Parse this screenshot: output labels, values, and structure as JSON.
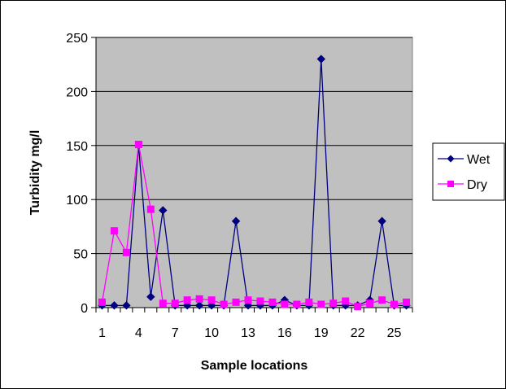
{
  "chart_data": {
    "type": "line",
    "xlabel": "Sample locations",
    "ylabel": "Turbidity mg/l",
    "ylim": [
      0,
      250
    ],
    "yticks": [
      0,
      50,
      100,
      150,
      200,
      250
    ],
    "x": [
      1,
      2,
      3,
      4,
      5,
      6,
      7,
      8,
      9,
      10,
      11,
      12,
      13,
      14,
      15,
      16,
      17,
      18,
      19,
      20,
      21,
      22,
      23,
      24,
      25,
      26
    ],
    "xtick_labels": [
      "1",
      "4",
      "7",
      "10",
      "13",
      "16",
      "19",
      "22",
      "25"
    ],
    "grid": "horizontal",
    "plot_background": "#c0c0c0",
    "legend_position": "right",
    "series": [
      {
        "name": "Wet",
        "color": "#000080",
        "marker": "diamond",
        "values": [
          2,
          2,
          2,
          150,
          10,
          90,
          2,
          2,
          2,
          2,
          2,
          80,
          2,
          2,
          2,
          7,
          2,
          2,
          230,
          2,
          2,
          2,
          7,
          80,
          2,
          2
        ]
      },
      {
        "name": "Dry",
        "color": "#ff00ff",
        "marker": "square",
        "values": [
          5,
          71,
          51,
          151,
          91,
          4,
          4,
          7,
          8,
          7,
          3,
          5,
          7,
          6,
          5,
          3,
          3,
          5,
          3,
          4,
          6,
          1,
          4,
          7,
          3,
          5
        ]
      }
    ]
  }
}
